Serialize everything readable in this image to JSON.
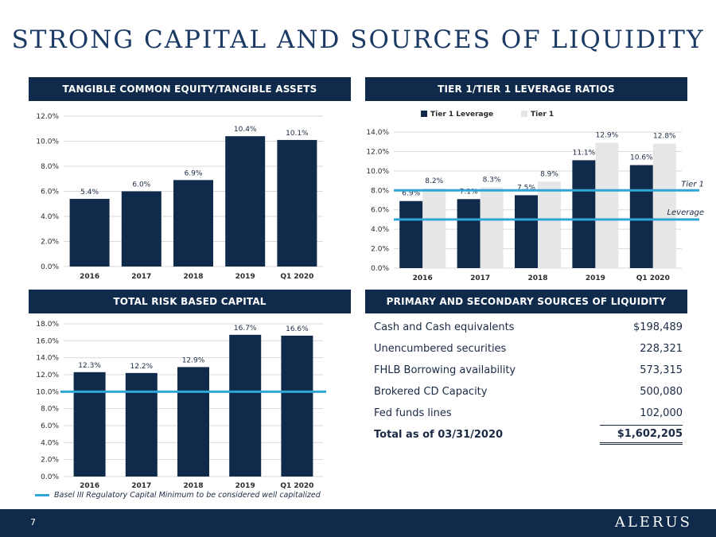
{
  "title": "STRONG CAPITAL AND SOURCES OF LIQUIDITY",
  "colors": {
    "navy": "#0f2a4a",
    "bar_dark": "#0f2a4a",
    "bar_light": "#e6e6e6",
    "reference_line": "#2ea6d6"
  },
  "panels": {
    "tce": "TANGIBLE COMMON EQUITY/TANGIBLE ASSETS",
    "tier": "TIER 1/TIER 1 LEVERAGE RATIOS",
    "trbc": "TOTAL RISK BASED CAPITAL",
    "liquidity": "PRIMARY AND SECONDARY SOURCES OF LIQUIDITY"
  },
  "chart_data": [
    {
      "id": "tce",
      "type": "bar",
      "title": "TANGIBLE COMMON EQUITY/TANGIBLE ASSETS",
      "categories": [
        "2016",
        "2017",
        "2018",
        "2019",
        "Q1 2020"
      ],
      "values": [
        5.4,
        6.0,
        6.9,
        10.4,
        10.1
      ],
      "value_labels": [
        "5.4%",
        "6.0%",
        "6.9%",
        "10.4%",
        "10.1%"
      ],
      "ylim": [
        0,
        12
      ],
      "yticks": [
        "0.0%",
        "2.0%",
        "4.0%",
        "6.0%",
        "8.0%",
        "10.0%",
        "12.0%"
      ],
      "grid": true
    },
    {
      "id": "tier",
      "type": "bar",
      "title": "TIER 1/TIER 1 LEVERAGE RATIOS",
      "categories": [
        "2016",
        "2017",
        "2018",
        "2019",
        "Q1 2020"
      ],
      "series": [
        {
          "name": "Tier 1 Leverage",
          "values": [
            6.9,
            7.1,
            7.5,
            11.1,
            10.6
          ],
          "labels": [
            "6.9%",
            "7.1%",
            "7.5%",
            "11.1%",
            "10.6%"
          ]
        },
        {
          "name": "Tier 1",
          "values": [
            8.2,
            8.3,
            8.9,
            12.9,
            12.8
          ],
          "labels": [
            "8.2%",
            "8.3%",
            "8.9%",
            "12.9%",
            "12.8%"
          ]
        }
      ],
      "ylim": [
        0,
        14
      ],
      "yticks": [
        "0.0%",
        "2.0%",
        "4.0%",
        "6.0%",
        "8.0%",
        "10.0%",
        "12.0%",
        "14.0%"
      ],
      "reference_lines": [
        {
          "name": "Tier 1",
          "value": 8.0
        },
        {
          "name": "Leverage",
          "value": 5.0
        }
      ],
      "legend": "top",
      "grid": true
    },
    {
      "id": "trbc",
      "type": "bar",
      "title": "TOTAL RISK BASED CAPITAL",
      "categories": [
        "2016",
        "2017",
        "2018",
        "2019",
        "Q1 2020"
      ],
      "values": [
        12.3,
        12.2,
        12.9,
        16.7,
        16.6
      ],
      "value_labels": [
        "12.3%",
        "12.2%",
        "12.9%",
        "16.7%",
        "16.6%"
      ],
      "ylim": [
        0,
        18
      ],
      "yticks": [
        "0.0%",
        "2.0%",
        "4.0%",
        "6.0%",
        "8.0%",
        "10.0%",
        "12.0%",
        "14.0%",
        "16.0%",
        "18.0%"
      ],
      "reference_lines": [
        {
          "name": "Basel III Regulatory Capital Minimum to be considered well capitalized",
          "value": 10.0
        }
      ],
      "grid": true
    }
  ],
  "basel_legend": "Basel III Regulatory Capital Minimum to be considered well capitalized",
  "liquidity": {
    "rows": [
      {
        "label": "Cash and Cash equivalents",
        "value": "$198,489"
      },
      {
        "label": "Unencumbered securities",
        "value": "228,321"
      },
      {
        "label": "FHLB Borrowing availability",
        "value": "573,315"
      },
      {
        "label": "Brokered CD Capacity",
        "value": "500,080"
      },
      {
        "label": "Fed funds lines",
        "value": "102,000"
      }
    ],
    "total": {
      "label": "Total as of 03/31/2020",
      "value": "$1,602,205"
    }
  },
  "footer": {
    "page": "7",
    "logo": "ALERUS"
  }
}
